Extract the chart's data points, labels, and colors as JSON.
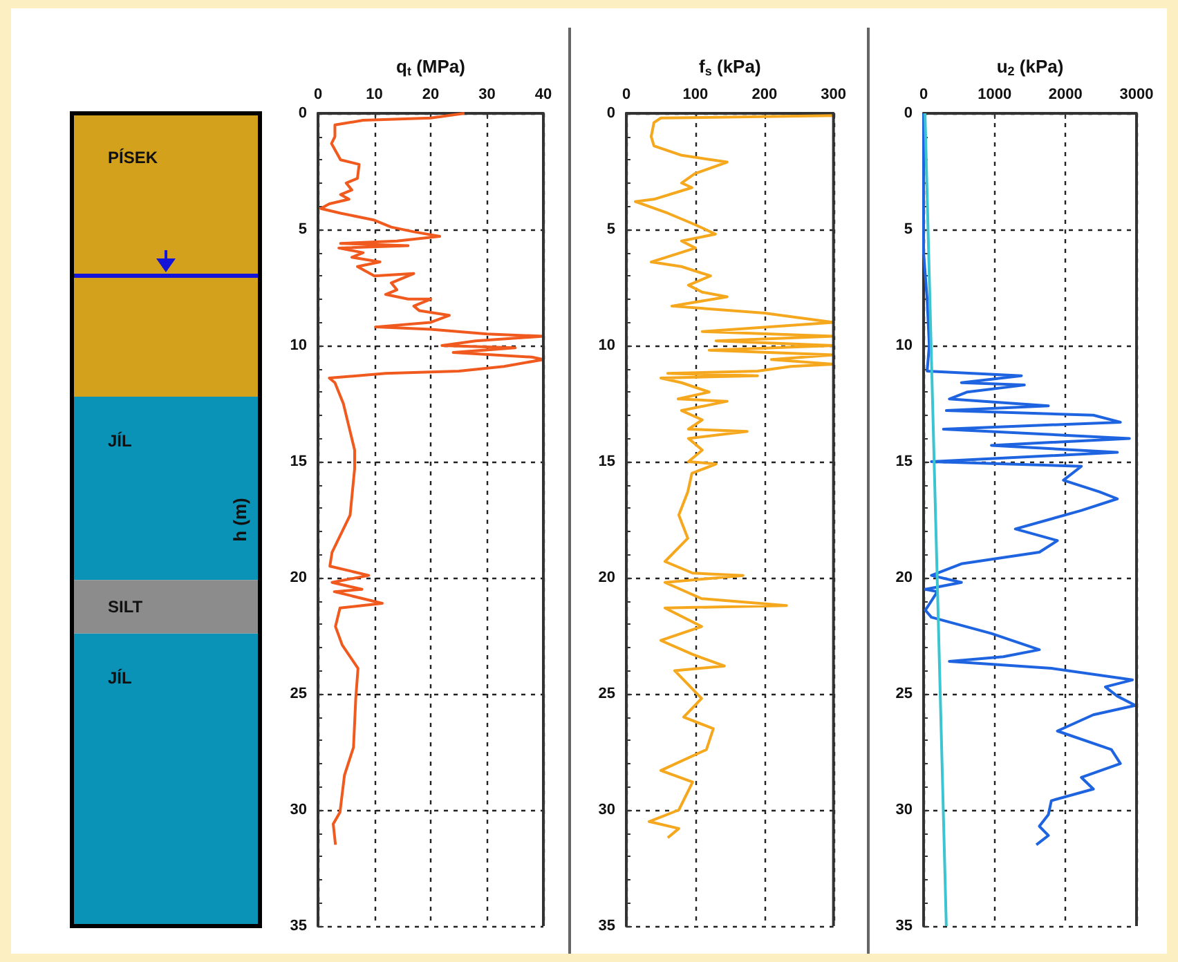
{
  "chart_data": [
    {
      "type": "bar",
      "stacked": true,
      "categories": [
        null
      ],
      "ylim": [
        35,
        0
      ],
      "tick_labels": false,
      "grid": false,
      "legend": false,
      "series": [
        {
          "name": "PÍSEK",
          "color": "#d3a11b",
          "values": [
            12.2
          ]
        },
        {
          "name": "JÍL",
          "color": "#0a93b7",
          "values": [
            7.9
          ]
        },
        {
          "name": "SILT",
          "color": "#8c8c8c",
          "values": [
            2.3
          ]
        },
        {
          "name": "JÍL",
          "color": "#0a93b7",
          "values": [
            12.6
          ]
        }
      ],
      "ref_lines": [
        {
          "axis": "y",
          "value": 7.0,
          "color": "#1414d8"
        }
      ]
    },
    {
      "type": "line",
      "xlabel": "q$_{t}$ (MPa)",
      "ylabel": "h (m)",
      "xlim": [
        0,
        40
      ],
      "xticks": [
        0,
        10,
        20,
        30,
        40
      ],
      "ylim": [
        35,
        0
      ],
      "yticks": [
        0,
        5,
        10,
        15,
        20,
        25,
        30,
        35
      ],
      "grid": true,
      "marker": "none",
      "legend": false,
      "series": [
        {
          "color": "#f05a1e",
          "x": [
            26,
            20,
            8,
            3,
            3,
            2.4,
            4,
            7.3,
            7,
            5,
            6,
            4,
            5.5,
            2,
            0.5,
            4,
            10,
            13,
            17,
            21.6,
            14,
            4,
            16,
            3.7,
            8,
            6,
            11,
            7,
            10,
            17,
            13,
            14,
            12,
            16,
            20,
            17,
            18,
            23.3,
            20,
            10.2,
            20,
            30,
            40,
            28,
            22,
            35,
            24,
            38,
            40,
            33,
            25,
            12,
            2,
            3,
            4.5,
            5.5,
            6.5,
            6.5,
            5.7,
            2.5,
            2.1,
            9,
            2.5,
            7.8,
            2.9,
            11.4,
            3.9,
            3.1,
            4.3,
            7.1,
            6.7,
            6.3,
            4.7,
            3.9,
            2.7,
            3.1
          ],
          "values": [
            0,
            0.2,
            0.3,
            0.5,
            1,
            1.3,
            2,
            2.2,
            2.8,
            3,
            3.3,
            3.5,
            3.7,
            3.9,
            4.1,
            4.3,
            4.6,
            4.9,
            5.1,
            5.3,
            5.5,
            5.6,
            5.7,
            5.8,
            6,
            6.2,
            6.4,
            6.6,
            7,
            6.9,
            7.3,
            7.6,
            7.8,
            8,
            8,
            8.3,
            8.5,
            8.7,
            9,
            9.2,
            9.3,
            9.5,
            9.6,
            9.8,
            10,
            10.1,
            10.3,
            10.5,
            10.6,
            10.9,
            11.1,
            11.2,
            11.4,
            11.6,
            12.5,
            13.5,
            14.5,
            15.3,
            17.3,
            18.9,
            19.5,
            19.9,
            20.2,
            20.5,
            20.6,
            21.1,
            21.3,
            22.1,
            22.9,
            23.9,
            25.2,
            27.3,
            28.5,
            30.1,
            30.6,
            31.5
          ]
        }
      ]
    },
    {
      "type": "line",
      "xlabel": "f$_{s}$ (kPa)",
      "xlim": [
        0,
        300
      ],
      "xticks": [
        0,
        100,
        200,
        300
      ],
      "ylim": [
        35,
        0
      ],
      "yticks": [
        0,
        5,
        10,
        15,
        20,
        25,
        30,
        35
      ],
      "grid": true,
      "marker": "none",
      "legend": false,
      "series": [
        {
          "color": "#f5a81e",
          "x": [
            300,
            50,
            40,
            36,
            40,
            79,
            146,
            99,
            80,
            95,
            40,
            13,
            60,
            100,
            129,
            80,
            100,
            36,
            80,
            122,
            90,
            110,
            146,
            66,
            200,
            300,
            110,
            300,
            130,
            300,
            120,
            300,
            210,
            300,
            238,
            190,
            60,
            190,
            50,
            80,
            120,
            75,
            146,
            80,
            110,
            90,
            175,
            90,
            110,
            90,
            130,
            95,
            89,
            76,
            89,
            56,
            96,
            169,
            56,
            109,
            232,
            56,
            109,
            50,
            96,
            142,
            70,
            109,
            83,
            126,
            116,
            50,
            96,
            76,
            33,
            76,
            60
          ],
          "values": [
            0.1,
            0.2,
            0.4,
            1,
            1.4,
            1.8,
            2.1,
            2.6,
            3,
            3.2,
            3.7,
            3.8,
            4.3,
            4.8,
            5.2,
            5.5,
            5.8,
            6.4,
            6.6,
            7,
            7.4,
            7.7,
            7.9,
            8.3,
            8.6,
            9,
            9.4,
            9.6,
            9.8,
            10,
            10.2,
            10.4,
            10.6,
            10.8,
            10.9,
            11.1,
            11.2,
            11.3,
            11.4,
            11.6,
            12,
            12.3,
            12.4,
            12.8,
            13.2,
            13.6,
            13.7,
            14,
            14.5,
            15,
            15.1,
            15.5,
            16.3,
            17.3,
            18.3,
            19.3,
            19.8,
            19.9,
            20.2,
            20.9,
            21.2,
            21.3,
            22.1,
            22.7,
            23.3,
            23.8,
            24,
            25.2,
            26,
            26.5,
            27.4,
            28.3,
            28.8,
            30,
            30.5,
            30.8,
            31.2
          ]
        }
      ]
    },
    {
      "type": "line",
      "xlabel": "u$_{2}$ (kPa)",
      "xlim": [
        0,
        3000
      ],
      "xticks": [
        0,
        1000,
        2000,
        3000
      ],
      "ylim": [
        35,
        0
      ],
      "yticks": [
        0,
        5,
        10,
        15,
        20,
        25,
        30,
        35
      ],
      "grid": true,
      "marker": "none",
      "legend": false,
      "series": [
        {
          "color": "#1e64e0",
          "x": [
            0,
            0,
            50,
            80,
            50,
            1378,
            533,
            1420,
            617,
            363,
            1758,
            321,
            2392,
            2773,
            279,
            2900,
            955,
            2730,
            110,
            2223,
            1970,
            2477,
            2730,
            2223,
            1293,
            1885,
            1631,
            533,
            110,
            533,
            25,
            194,
            25,
            110,
            955,
            1631,
            1124,
            363,
            1800,
            2942,
            2561,
            2730,
            2984,
            2392,
            1885,
            2646,
            2773,
            2223,
            2392,
            1800,
            1758,
            1631,
            1758,
            1589
          ],
          "values": [
            0,
            6,
            8,
            10,
            11.1,
            11.3,
            11.6,
            11.7,
            12,
            12.3,
            12.6,
            12.8,
            13,
            13.3,
            13.6,
            14,
            14.3,
            14.6,
            15,
            15.2,
            15.8,
            16.3,
            16.6,
            17.1,
            17.9,
            18.4,
            18.9,
            19.4,
            19.9,
            20.2,
            20.5,
            20.6,
            21.4,
            21.7,
            22.4,
            23.1,
            23.4,
            23.6,
            23.9,
            24.4,
            24.7,
            25.1,
            25.5,
            25.9,
            26.6,
            27.4,
            28,
            28.6,
            29.1,
            29.6,
            30.2,
            30.7,
            31.1,
            31.5
          ]
        },
        {
          "color": "#3cc4d0",
          "x": [
            20,
            320
          ],
          "values": [
            0,
            35
          ]
        }
      ]
    }
  ]
}
